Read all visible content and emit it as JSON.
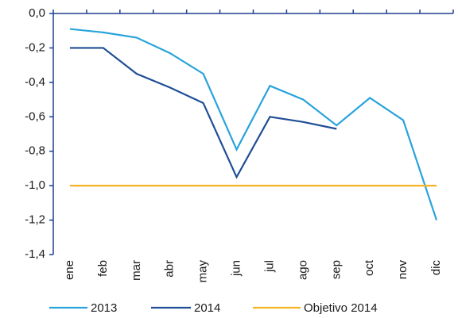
{
  "chart_data": {
    "type": "line",
    "categories": [
      "ene",
      "feb",
      "mar",
      "abr",
      "may",
      "jun",
      "jul",
      "ago",
      "sep",
      "oct",
      "nov",
      "dic"
    ],
    "series": [
      {
        "name": "2013",
        "color": "#29a3dc",
        "values": [
          -0.09,
          -0.11,
          -0.14,
          -0.23,
          -0.35,
          -0.79,
          -0.42,
          -0.5,
          -0.65,
          -0.49,
          -0.62,
          -1.2
        ]
      },
      {
        "name": "2014",
        "color": "#1f4e96",
        "values": [
          -0.2,
          -0.2,
          -0.35,
          -0.43,
          -0.52,
          -0.95,
          -0.6,
          -0.63,
          -0.67,
          null,
          null,
          null
        ]
      },
      {
        "name": "Objetivo 2014",
        "color": "#f5b323",
        "values": [
          -1.0,
          -1.0,
          -1.0,
          -1.0,
          -1.0,
          -1.0,
          -1.0,
          -1.0,
          -1.0,
          -1.0,
          -1.0,
          -1.0
        ]
      }
    ],
    "ylim": [
      0,
      -1.4
    ],
    "yticks": [
      {
        "value": 0,
        "label": "0,0"
      },
      {
        "value": -0.2,
        "label": "-0,2"
      },
      {
        "value": -0.4,
        "label": "-0,4"
      },
      {
        "value": -0.6,
        "label": "-0,6"
      },
      {
        "value": -0.8,
        "label": "-0,8"
      },
      {
        "value": -1.0,
        "label": "-1,0"
      },
      {
        "value": -1.2,
        "label": "-1,2"
      },
      {
        "value": -1.4,
        "label": "-1,4"
      }
    ],
    "grid": false,
    "legend": "bottom"
  }
}
